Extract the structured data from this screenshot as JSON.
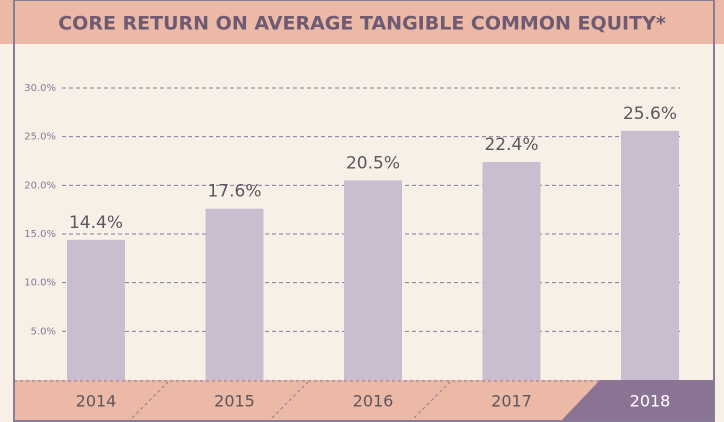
{
  "chart_data": {
    "type": "bar",
    "title": "CORE RETURN ON AVERAGE TANGIBLE COMMON EQUITY*",
    "categories": [
      "2014",
      "2015",
      "2016",
      "2017",
      "2018"
    ],
    "values": [
      14.4,
      17.6,
      20.5,
      22.4,
      25.6
    ],
    "value_labels": [
      "14.4%",
      "17.6%",
      "20.5%",
      "22.4%",
      "25.6%"
    ],
    "color": "#c9bdd0",
    "ylim": [
      0,
      30
    ],
    "yticks": [
      {
        "value": 5,
        "label": "5.0%"
      },
      {
        "value": 10,
        "label": "10.0%"
      },
      {
        "value": 15,
        "label": "15.0%"
      },
      {
        "value": 20,
        "label": "20.0%"
      },
      {
        "value": 25,
        "label": "25.0%"
      },
      {
        "value": 30,
        "label": "30.0%"
      }
    ],
    "grid": true
  }
}
